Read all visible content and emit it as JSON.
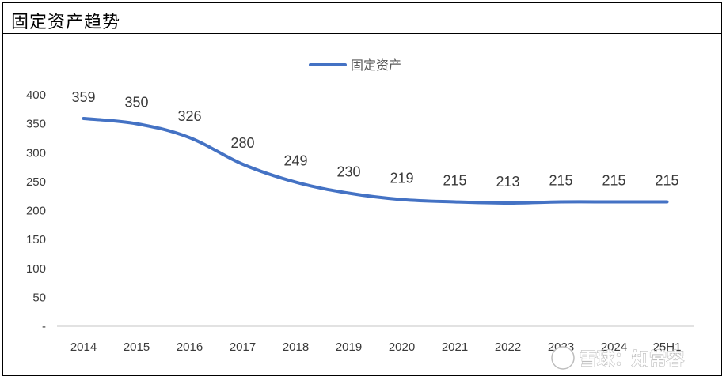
{
  "title": "固定资产趋势",
  "watermark": "雪球：知常容",
  "colors": {
    "series": "#4472C4",
    "axis": "#D9D9D9",
    "text": "#3a3a3a"
  },
  "chart_data": {
    "type": "line",
    "title": "固定资产趋势",
    "categories": [
      "2014",
      "2015",
      "2016",
      "2017",
      "2018",
      "2019",
      "2020",
      "2021",
      "2022",
      "2023",
      "2024",
      "25H1"
    ],
    "series": [
      {
        "name": "固定资产",
        "values": [
          359,
          350,
          326,
          280,
          249,
          230,
          219,
          215,
          213,
          215,
          215,
          215
        ]
      }
    ],
    "y_ticks": [
      "-",
      "50",
      "100",
      "150",
      "200",
      "250",
      "300",
      "350",
      "400"
    ],
    "ylim": [
      0,
      400
    ],
    "legend": "top-center",
    "grid": false,
    "data_labels": true
  }
}
